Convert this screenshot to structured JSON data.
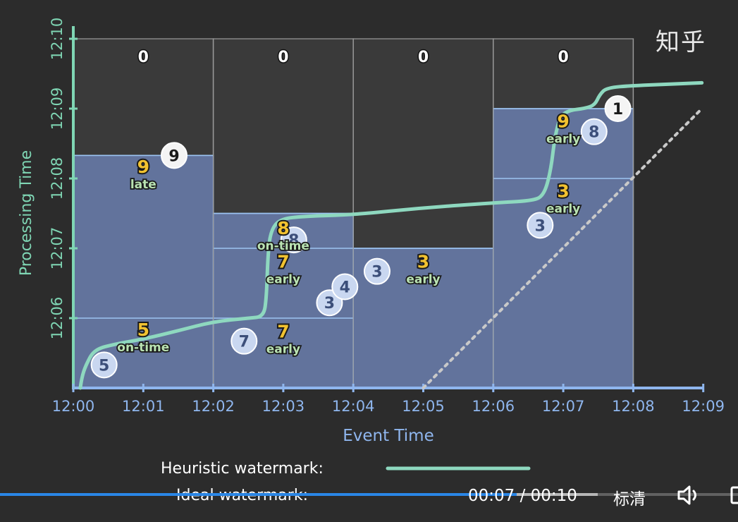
{
  "watermark": "知乎",
  "chart_data": {
    "type": "diagram",
    "title": "",
    "xlabel": "Event Time",
    "ylabel": "Processing Time",
    "x_ticks": [
      "12:00",
      "12:01",
      "12:02",
      "12:03",
      "12:04",
      "12:05",
      "12:06",
      "12:07",
      "12:08",
      "12:09"
    ],
    "y_ticks": [
      "12:06",
      "12:07",
      "12:08",
      "12:09",
      "12:10"
    ],
    "x_range_min": [
      0,
      9
    ],
    "y_range_min": [
      5,
      10
    ],
    "colors": {
      "pane": "#62739c",
      "pane_line": "#9cc4f2",
      "axis_x": "#8fb6ee",
      "axis_y": "#7fd6b4",
      "heuristic": "#8ed8bf",
      "ideal": "#c9c9c9",
      "result_value": "#f2c230",
      "result_label": "#b9e2b2",
      "zero": "#ffffff"
    },
    "windows": [
      {
        "start": 0,
        "end": 2,
        "top": 8.33,
        "panes": [
          8.33,
          6.0
        ]
      },
      {
        "start": 2,
        "end": 4,
        "top": 7.5,
        "panes": [
          7.5,
          7.0,
          6.0
        ]
      },
      {
        "start": 4,
        "end": 6,
        "top": 7.0,
        "panes": [
          7.0
        ]
      },
      {
        "start": 6,
        "end": 8,
        "top": 9.0,
        "panes": [
          9.0,
          8.0
        ]
      }
    ],
    "zero_results": [
      {
        "x": 1,
        "y": 9.75,
        "value": "0"
      },
      {
        "x": 3,
        "y": 9.75,
        "value": "0"
      },
      {
        "x": 5,
        "y": 9.75,
        "value": "0"
      },
      {
        "x": 7,
        "y": 9.75,
        "value": "0"
      }
    ],
    "pane_results": [
      {
        "x": 1,
        "y": 8.08,
        "value": "9",
        "label": "late"
      },
      {
        "x": 1,
        "y": 5.75,
        "value": "5",
        "label": "on-time"
      },
      {
        "x": 3,
        "y": 7.2,
        "value": "8",
        "label": "on-time"
      },
      {
        "x": 3,
        "y": 6.72,
        "value": "7",
        "label": "early"
      },
      {
        "x": 3,
        "y": 5.72,
        "value": "7",
        "label": "early"
      },
      {
        "x": 5,
        "y": 6.72,
        "value": "3",
        "label": "early"
      },
      {
        "x": 7,
        "y": 8.73,
        "value": "9",
        "label": "early"
      },
      {
        "x": 7,
        "y": 7.73,
        "value": "3",
        "label": "early"
      }
    ],
    "events": [
      {
        "x": 0.44,
        "y": 5.33,
        "value": "5"
      },
      {
        "x": 1.44,
        "y": 8.33,
        "value": "9"
      },
      {
        "x": 2.44,
        "y": 5.67,
        "value": "7"
      },
      {
        "x": 3.15,
        "y": 7.12,
        "value": "8"
      },
      {
        "x": 3.66,
        "y": 6.22,
        "value": "3"
      },
      {
        "x": 3.88,
        "y": 6.45,
        "value": "4"
      },
      {
        "x": 4.34,
        "y": 6.67,
        "value": "3"
      },
      {
        "x": 6.67,
        "y": 7.33,
        "value": "3"
      },
      {
        "x": 7.44,
        "y": 8.67,
        "value": "8"
      },
      {
        "x": 7.78,
        "y": 9.0,
        "value": "1"
      }
    ],
    "heuristic_watermark": [
      [
        0.1,
        5.0
      ],
      [
        0.12,
        5.15
      ],
      [
        0.18,
        5.33
      ],
      [
        0.3,
        5.55
      ],
      [
        0.6,
        5.63
      ],
      [
        1.0,
        5.7
      ],
      [
        1.5,
        5.82
      ],
      [
        2.0,
        5.95
      ],
      [
        2.5,
        6.0
      ],
      [
        2.72,
        6.02
      ],
      [
        2.76,
        6.3
      ],
      [
        2.78,
        6.9
      ],
      [
        2.82,
        7.25
      ],
      [
        2.95,
        7.42
      ],
      [
        3.3,
        7.46
      ],
      [
        4.0,
        7.48
      ],
      [
        5.0,
        7.58
      ],
      [
        6.0,
        7.65
      ],
      [
        6.55,
        7.68
      ],
      [
        6.72,
        7.75
      ],
      [
        6.82,
        8.1
      ],
      [
        6.88,
        8.6
      ],
      [
        6.96,
        8.9
      ],
      [
        7.1,
        8.98
      ],
      [
        7.3,
        9.0
      ],
      [
        7.45,
        9.05
      ],
      [
        7.52,
        9.2
      ],
      [
        7.62,
        9.3
      ],
      [
        8.0,
        9.33
      ],
      [
        8.5,
        9.35
      ],
      [
        8.98,
        9.37
      ]
    ],
    "ideal_watermark": [
      [
        5.0,
        5.0
      ],
      [
        8.98,
        9.0
      ]
    ],
    "legend": [
      {
        "label": "Heuristic watermark:",
        "style": "solid"
      },
      {
        "label": "Ideal watermark:",
        "style": "dotted"
      }
    ]
  },
  "player": {
    "time_display": "00:07 / 00:10",
    "quality_label": "标清",
    "progress": 0.7,
    "buffered": 0.81,
    "volume_icon": "volume-icon",
    "fullscreen_icon": "fullscreen-icon"
  }
}
